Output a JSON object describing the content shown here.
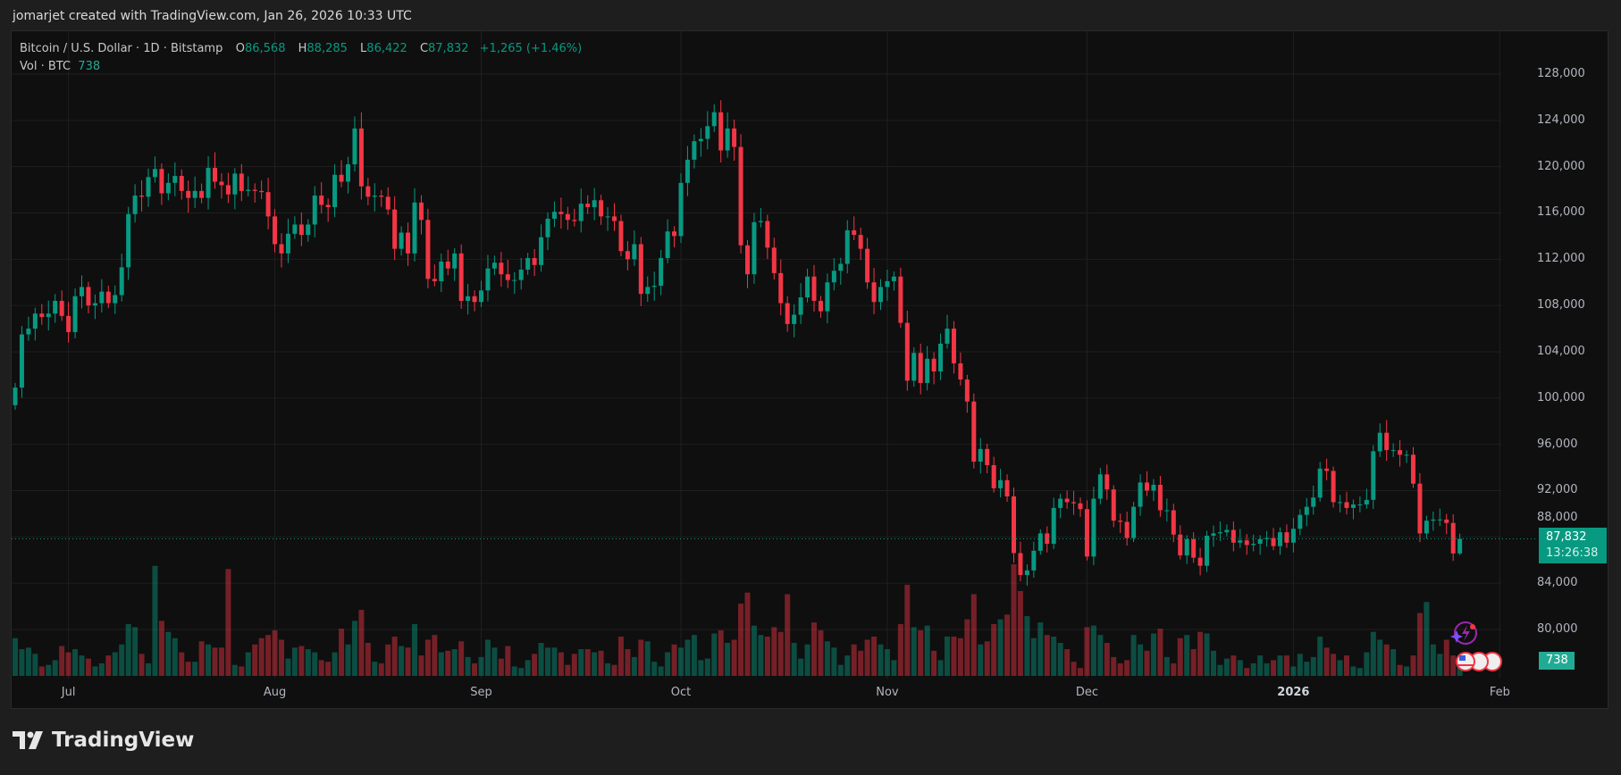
{
  "caption": "jomarjet created with TradingView.com, Jan 26, 2026 10:33 UTC",
  "legend": {
    "symbol": "Bitcoin / U.S. Dollar · 1D · Bitstamp",
    "o_label": "O",
    "o": "86,568",
    "h_label": "H",
    "h": "88,285",
    "l_label": "L",
    "l": "86,422",
    "c_label": "C",
    "c": "87,832",
    "change": "+1,265 (+1.46%)",
    "vol_label": "Vol · BTC",
    "vol": "738"
  },
  "current_price": {
    "price": "87,832",
    "countdown": "13:26:38",
    "value": 87832
  },
  "volume_tag": "738",
  "logo_text": "TradingView",
  "colors": {
    "up": "#089981",
    "down": "#f23645",
    "background": "#0f0f0f"
  },
  "chart_data": {
    "type": "candlestick",
    "title": "Bitcoin / U.S. Dollar · 1D · Bitstamp",
    "ylim": [
      78000,
      130000
    ],
    "y_ticks": [
      80000,
      84000,
      88000,
      92000,
      96000,
      100000,
      104000,
      108000,
      112000,
      116000,
      120000,
      124000,
      128000
    ],
    "y_tick_labels": [
      "80,000",
      "84,000",
      "88,000",
      "92,000",
      "96,000",
      "100,000",
      "104,000",
      "108,000",
      "112,000",
      "116,000",
      "120,000",
      "124,000",
      "128,000"
    ],
    "x_ticks": [
      {
        "label": "Jul",
        "date": "2025-07-01"
      },
      {
        "label": "Aug",
        "date": "2025-08-01"
      },
      {
        "label": "Sep",
        "date": "2025-09-01"
      },
      {
        "label": "Oct",
        "date": "2025-10-01"
      },
      {
        "label": "Nov",
        "date": "2025-11-01"
      },
      {
        "label": "Dec",
        "date": "2025-12-01"
      },
      {
        "label": "2026",
        "date": "2026-01-01",
        "bold": true
      },
      {
        "label": "Feb",
        "date": "2026-02-01"
      }
    ],
    "grid": true,
    "last_candle": {
      "date": "2026-01-26",
      "open": 86568,
      "high": 88285,
      "low": 86422,
      "close": 87832,
      "volume": 738
    },
    "months": [
      {
        "month": "2025-06",
        "first_day": 23,
        "close": [
          100900,
          105500,
          106000,
          107300,
          107000,
          107300,
          108400,
          107100
        ],
        "volume": [
          2400,
          1700,
          1800,
          1400,
          600,
          700,
          1000,
          1900
        ]
      },
      {
        "month": "2025-07",
        "first_day": 1,
        "close": [
          105700,
          108800,
          109600,
          108000,
          108200,
          109200,
          108200,
          108900,
          111300,
          115900,
          117500,
          117400,
          119100,
          119800,
          117700,
          118600,
          119200,
          117900,
          117300,
          117900,
          117300,
          119900,
          118700,
          118400,
          117600,
          119400,
          117900,
          118000,
          117900,
          117800,
          115700
        ],
        "volume": [
          1500,
          1700,
          1300,
          1100,
          600,
          800,
          1300,
          1500,
          2000,
          3300,
          3100,
          1400,
          800,
          7000,
          3500,
          2800,
          2400,
          1500,
          900,
          900,
          2200,
          2000,
          1800,
          1800,
          6800,
          700,
          600,
          1500,
          2000,
          2400,
          2600
        ]
      },
      {
        "month": "2025-08",
        "first_day": 1,
        "close": [
          113300,
          112500,
          114200,
          115000,
          114100,
          115000,
          117500,
          116700,
          116500,
          119300,
          118700,
          120200,
          123300,
          118300,
          117400,
          117500,
          117400,
          116300,
          112900,
          114300,
          112500,
          116900,
          115400,
          110300,
          110100,
          111800,
          111200,
          112500,
          108400,
          108800,
          108300
        ],
        "volume": [
          2900,
          2300,
          1100,
          1800,
          1900,
          1700,
          1500,
          1000,
          900,
          1500,
          3000,
          2000,
          3500,
          4200,
          2100,
          900,
          800,
          2000,
          2500,
          1900,
          1800,
          3300,
          1300,
          2300,
          2600,
          1500,
          1600,
          1700,
          2200,
          1200,
          800
        ]
      },
      {
        "month": "2025-09",
        "first_day": 1,
        "close": [
          109300,
          111200,
          111700,
          110700,
          110200,
          110200,
          111100,
          112100,
          111500,
          113900,
          115500,
          116100,
          115900,
          115400,
          115300,
          116800,
          116500,
          117100,
          115700,
          115700,
          115300,
          112700,
          112000,
          113300,
          109000,
          109600,
          109700,
          112100,
          114400,
          114000
        ],
        "volume": [
          1200,
          2300,
          1800,
          1100,
          1900,
          600,
          500,
          1000,
          1400,
          2100,
          1800,
          1800,
          1500,
          700,
          1400,
          1700,
          1700,
          1500,
          1600,
          800,
          700,
          2500,
          1700,
          1200,
          2300,
          2200,
          900,
          600,
          1500,
          2000
        ]
      },
      {
        "month": "2025-10",
        "first_day": 1,
        "close": [
          118600,
          120600,
          122200,
          122400,
          123500,
          124700,
          121400,
          123300,
          121700,
          113200,
          110700,
          115200,
          115300,
          113000,
          110800,
          108200,
          106400,
          107200,
          108700,
          110500,
          108400,
          107500,
          110000,
          111000,
          111600,
          114500,
          114100,
          112900,
          110000,
          108300,
          109600
        ],
        "volume": [
          1800,
          2300,
          2600,
          1000,
          1100,
          2700,
          2900,
          2100,
          2300,
          4600,
          5300,
          3200,
          2600,
          2500,
          3100,
          2800,
          5200,
          2100,
          1100,
          2000,
          3400,
          2900,
          2200,
          1800,
          700,
          1300,
          2000,
          1600,
          2300,
          2500,
          2000
        ]
      },
      {
        "month": "2025-11",
        "first_day": 1,
        "close": [
          110100,
          110500,
          106500,
          101500,
          103900,
          101300,
          103400,
          102300,
          104700,
          106000,
          103000,
          101600,
          99700,
          94500,
          95600,
          94200,
          92200,
          92900,
          91500,
          86600,
          84700,
          85100,
          86800,
          88300,
          87400,
          90500,
          91300,
          91000,
          90900,
          90400
        ],
        "volume": [
          1700,
          1000,
          3300,
          5800,
          3100,
          2900,
          3200,
          1600,
          1000,
          2500,
          2500,
          2400,
          3600,
          5200,
          2000,
          2200,
          3300,
          3600,
          3900,
          7100,
          5400,
          3800,
          2400,
          3400,
          2600,
          2500,
          2100,
          1700,
          900,
          500
        ]
      },
      {
        "month": "2025-12",
        "first_day": 1,
        "close": [
          86300,
          91300,
          93400,
          92100,
          89400,
          89300,
          87900,
          90600,
          92700,
          92000,
          92500,
          90300,
          90300,
          88200,
          86400,
          87800,
          86200,
          85500,
          88100,
          88300,
          88400,
          88600,
          87500,
          87700,
          87300,
          87400,
          87800,
          87900,
          87200,
          88400,
          87500
        ],
        "volume": [
          3100,
          3200,
          2600,
          2100,
          1200,
          800,
          1000,
          2600,
          2000,
          1600,
          2700,
          3000,
          1200,
          800,
          2400,
          2600,
          1700,
          2800,
          2700,
          1600,
          700,
          1100,
          1300,
          1000,
          500,
          800,
          1300,
          800,
          1000,
          1300,
          1300
        ]
      },
      {
        "month": "2026-01",
        "first_day": 1,
        "close": [
          88700,
          89900,
          90600,
          91400,
          93900,
          93700,
          91000,
          91000,
          90500,
          90800,
          90800,
          91200,
          95400,
          97000,
          95500,
          95500,
          95100,
          95100,
          92600,
          88300,
          89400,
          89500,
          89500,
          89200,
          86568,
          87832
        ],
        "volume": [
          600,
          1400,
          900,
          1200,
          2500,
          1800,
          1400,
          1000,
          1300,
          600,
          500,
          1500,
          2800,
          2300,
          2000,
          1700,
          700,
          600,
          1300,
          4000,
          4700,
          2000,
          1400,
          2300,
          1300,
          738
        ]
      }
    ]
  }
}
